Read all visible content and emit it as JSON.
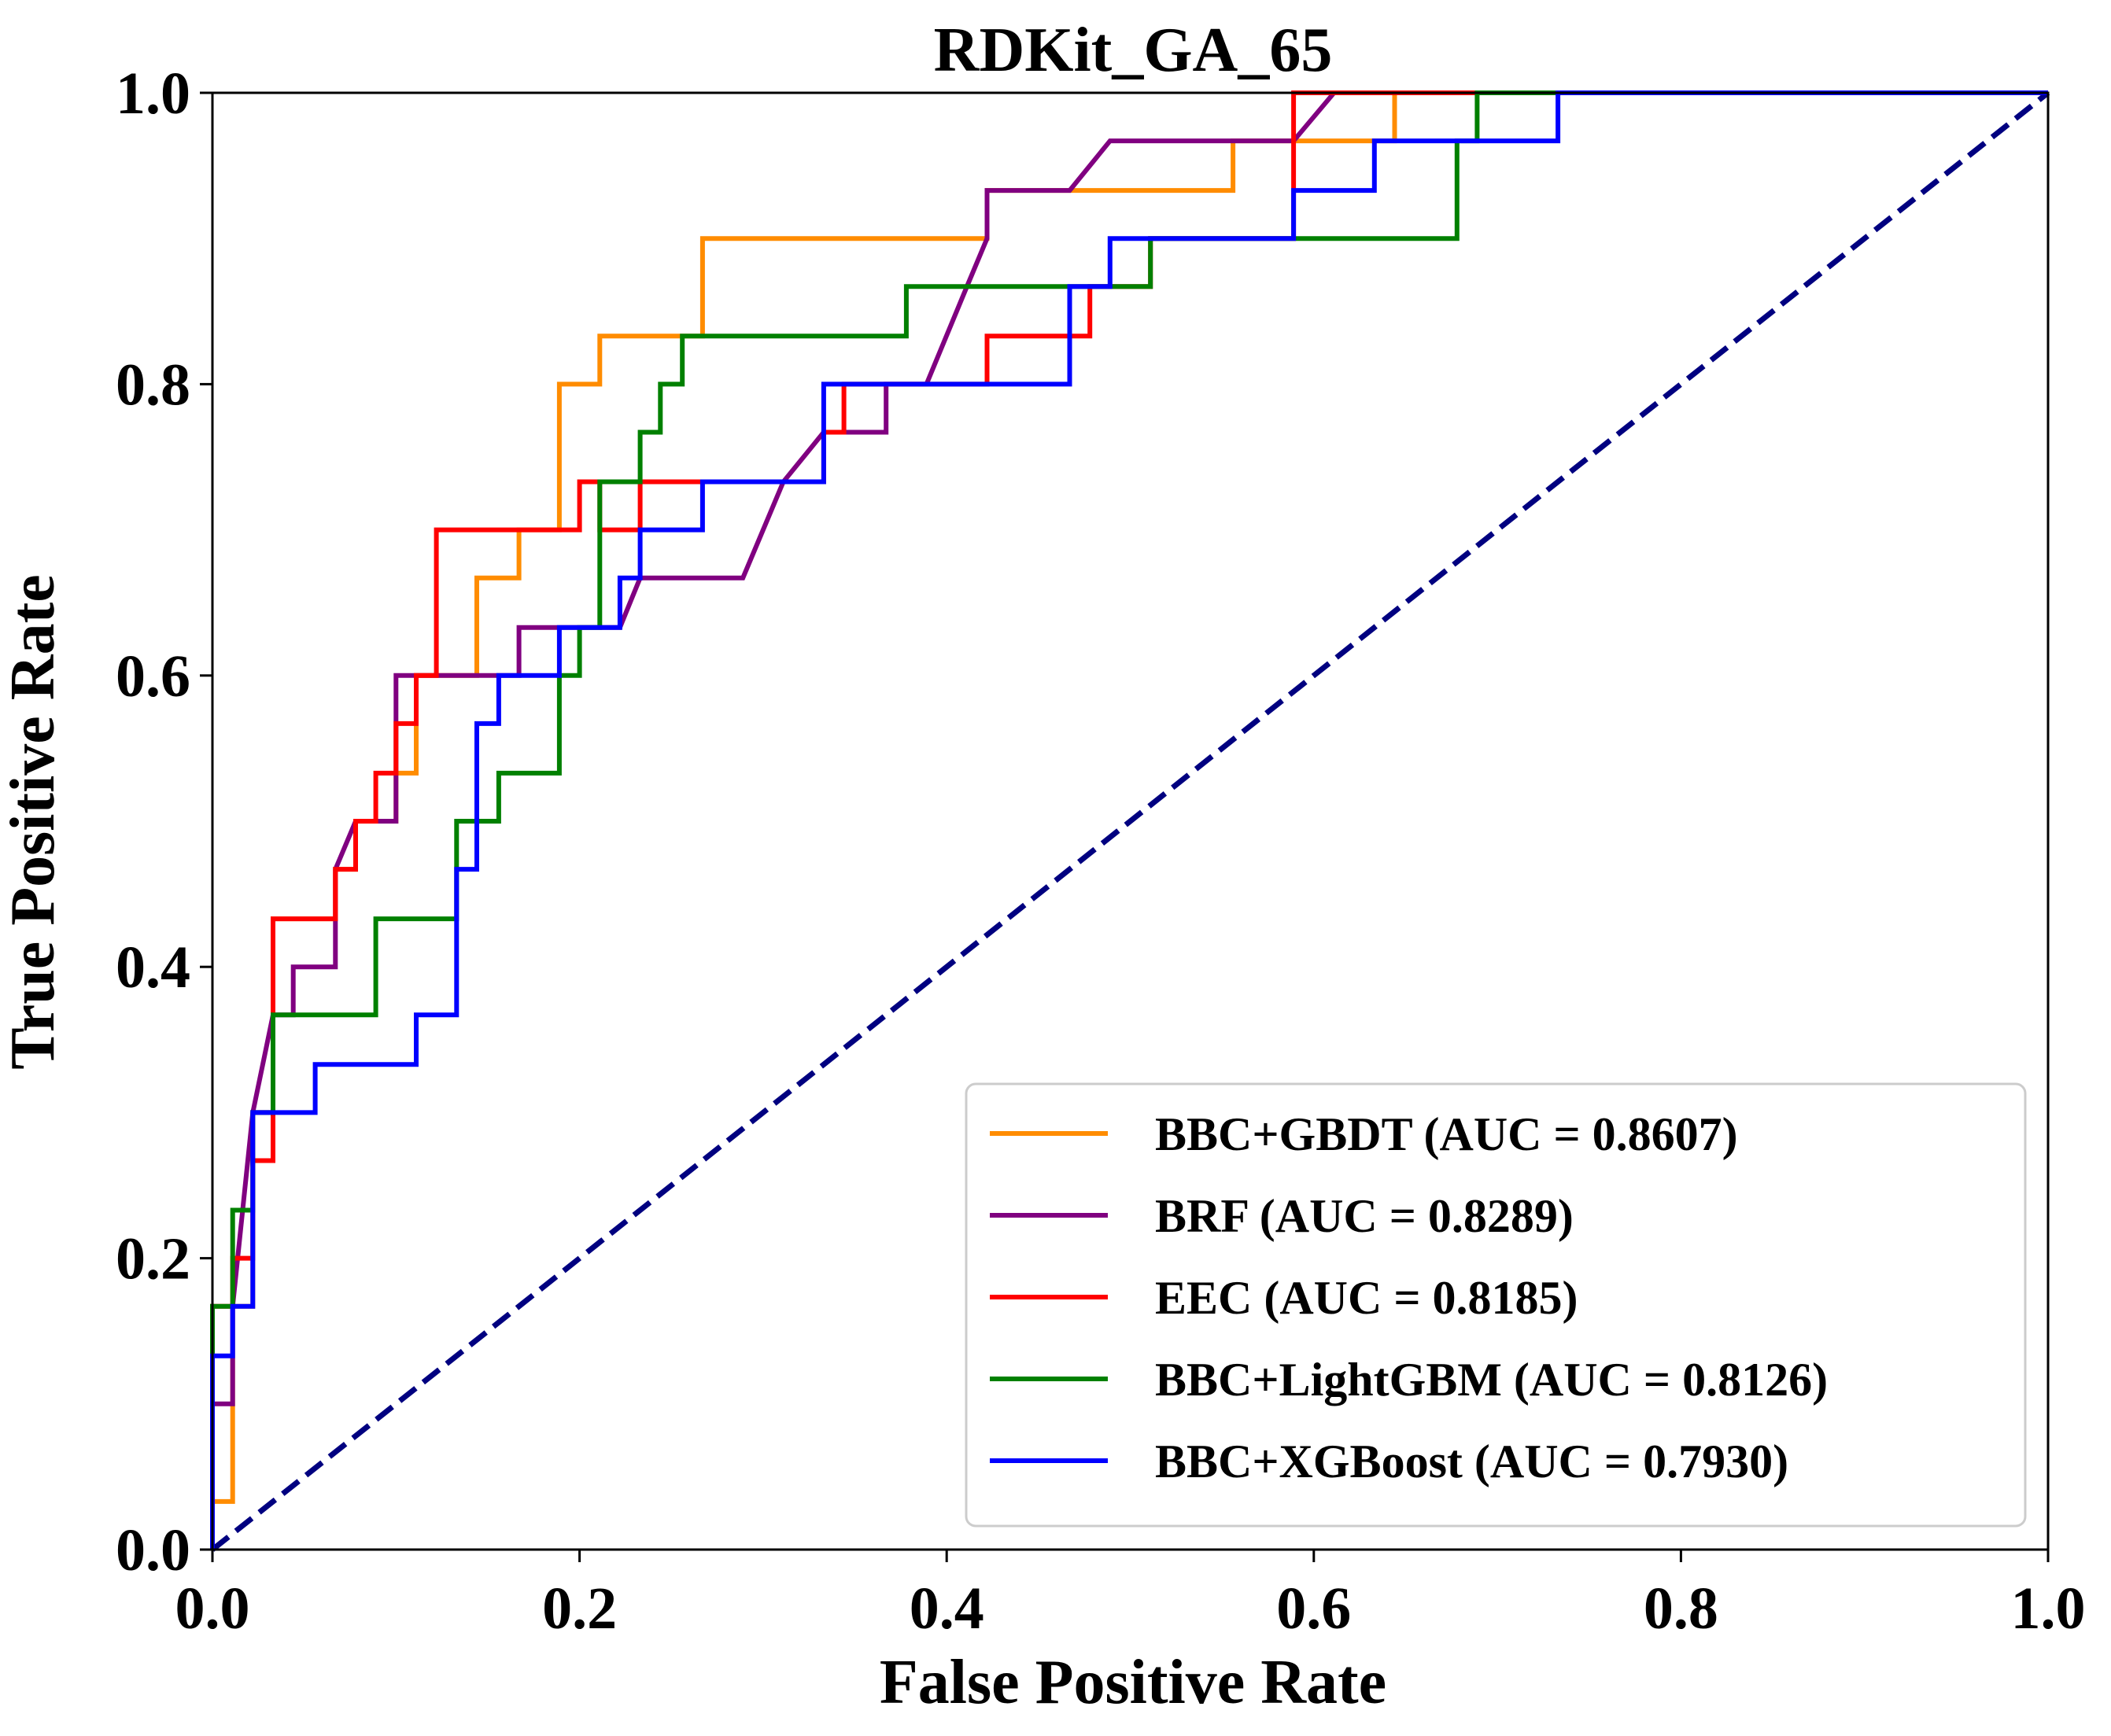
{
  "chart_data": {
    "type": "line",
    "title": "RDKit_GA_65",
    "xlabel": "False Positive Rate",
    "ylabel": "True Positive Rate",
    "xlim": [
      0.0,
      1.0
    ],
    "ylim": [
      0.0,
      1.0
    ],
    "xticks": [
      "0.0",
      "0.2",
      "0.4",
      "0.6",
      "0.8",
      "1.0"
    ],
    "yticks": [
      "0.0",
      "0.2",
      "0.4",
      "0.6",
      "0.8",
      "1.0"
    ],
    "grid": false,
    "legend_position": "lower-right",
    "diagonal": {
      "x": [
        0.0,
        1.0
      ],
      "y": [
        0.0,
        1.0
      ],
      "color": "#000080",
      "style": "dashed"
    },
    "series": [
      {
        "name": "BBC+GBDT (AUC = 0.8607)",
        "color": "#ff8c00",
        "x": [
          0.0,
          0.0,
          0.011,
          0.011,
          0.022,
          0.022,
          0.033,
          0.033,
          0.067,
          0.067,
          0.078,
          0.078,
          0.1,
          0.1,
          0.111,
          0.111,
          0.144,
          0.144,
          0.167,
          0.167,
          0.189,
          0.189,
          0.211,
          0.211,
          0.267,
          0.267,
          0.422,
          0.422,
          0.556,
          0.556,
          0.644,
          0.644,
          1.0
        ],
        "y": [
          0.0,
          0.033,
          0.033,
          0.167,
          0.167,
          0.3,
          0.3,
          0.433,
          0.433,
          0.467,
          0.467,
          0.5,
          0.5,
          0.533,
          0.533,
          0.6,
          0.6,
          0.667,
          0.667,
          0.7,
          0.7,
          0.8,
          0.8,
          0.833,
          0.833,
          0.9,
          0.9,
          0.933,
          0.933,
          0.967,
          0.967,
          1.0,
          1.0
        ]
      },
      {
        "name": "BRF (AUC = 0.8289)",
        "color": "#800080",
        "x": [
          0.0,
          0.0,
          0.011,
          0.011,
          0.022,
          0.033,
          0.044,
          0.044,
          0.067,
          0.067,
          0.078,
          0.1,
          0.1,
          0.167,
          0.167,
          0.222,
          0.233,
          0.289,
          0.311,
          0.333,
          0.367,
          0.367,
          0.389,
          0.411,
          0.422,
          0.422,
          0.467,
          0.489,
          0.589,
          0.611,
          1.0
        ],
        "y": [
          0.0,
          0.1,
          0.1,
          0.167,
          0.3,
          0.367,
          0.367,
          0.4,
          0.4,
          0.467,
          0.5,
          0.5,
          0.6,
          0.6,
          0.633,
          0.633,
          0.667,
          0.667,
          0.733,
          0.767,
          0.767,
          0.8,
          0.8,
          0.867,
          0.9,
          0.933,
          0.933,
          0.967,
          0.967,
          1.0,
          1.0
        ]
      },
      {
        "name": "EEC (AUC = 0.8185)",
        "color": "#ff0000",
        "x": [
          0.0,
          0.0,
          0.011,
          0.011,
          0.022,
          0.022,
          0.033,
          0.033,
          0.067,
          0.067,
          0.078,
          0.078,
          0.089,
          0.089,
          0.1,
          0.1,
          0.111,
          0.111,
          0.122,
          0.122,
          0.2,
          0.2,
          0.211,
          0.211,
          0.233,
          0.233,
          0.333,
          0.333,
          0.344,
          0.344,
          0.422,
          0.422,
          0.478,
          0.478,
          0.511,
          0.511,
          0.589,
          0.589,
          1.0
        ],
        "y": [
          0.0,
          0.167,
          0.167,
          0.2,
          0.2,
          0.267,
          0.267,
          0.433,
          0.433,
          0.467,
          0.467,
          0.5,
          0.5,
          0.533,
          0.533,
          0.567,
          0.567,
          0.6,
          0.6,
          0.7,
          0.7,
          0.733,
          0.733,
          0.7,
          0.7,
          0.733,
          0.733,
          0.767,
          0.767,
          0.8,
          0.8,
          0.833,
          0.833,
          0.867,
          0.867,
          0.9,
          0.9,
          1.0,
          1.0
        ]
      },
      {
        "name": "BBC+LightGBM (AUC = 0.8126)",
        "color": "#008000",
        "x": [
          0.0,
          0.0,
          0.011,
          0.011,
          0.022,
          0.022,
          0.033,
          0.033,
          0.089,
          0.089,
          0.133,
          0.133,
          0.156,
          0.156,
          0.189,
          0.189,
          0.2,
          0.2,
          0.211,
          0.211,
          0.233,
          0.233,
          0.244,
          0.244,
          0.256,
          0.256,
          0.378,
          0.378,
          0.511,
          0.511,
          0.678,
          0.678,
          0.689,
          0.689,
          1.0
        ],
        "y": [
          0.0,
          0.167,
          0.167,
          0.233,
          0.233,
          0.3,
          0.3,
          0.367,
          0.367,
          0.433,
          0.433,
          0.5,
          0.5,
          0.533,
          0.533,
          0.6,
          0.6,
          0.633,
          0.633,
          0.733,
          0.733,
          0.767,
          0.767,
          0.8,
          0.8,
          0.833,
          0.833,
          0.867,
          0.867,
          0.9,
          0.9,
          0.967,
          0.967,
          1.0,
          1.0
        ]
      },
      {
        "name": "BBC+XGBoost (AUC = 0.7930)",
        "color": "#0000ff",
        "x": [
          0.0,
          0.0,
          0.011,
          0.011,
          0.022,
          0.022,
          0.056,
          0.056,
          0.111,
          0.111,
          0.133,
          0.133,
          0.144,
          0.144,
          0.156,
          0.156,
          0.189,
          0.189,
          0.222,
          0.222,
          0.233,
          0.233,
          0.267,
          0.267,
          0.333,
          0.333,
          0.467,
          0.467,
          0.489,
          0.489,
          0.589,
          0.589,
          0.633,
          0.633,
          0.733,
          0.733,
          1.0
        ],
        "y": [
          0.0,
          0.133,
          0.133,
          0.167,
          0.167,
          0.3,
          0.3,
          0.333,
          0.333,
          0.367,
          0.367,
          0.467,
          0.467,
          0.567,
          0.567,
          0.6,
          0.6,
          0.633,
          0.633,
          0.667,
          0.667,
          0.7,
          0.7,
          0.733,
          0.733,
          0.8,
          0.8,
          0.867,
          0.867,
          0.9,
          0.9,
          0.933,
          0.933,
          0.967,
          0.967,
          1.0,
          1.0
        ]
      }
    ]
  }
}
